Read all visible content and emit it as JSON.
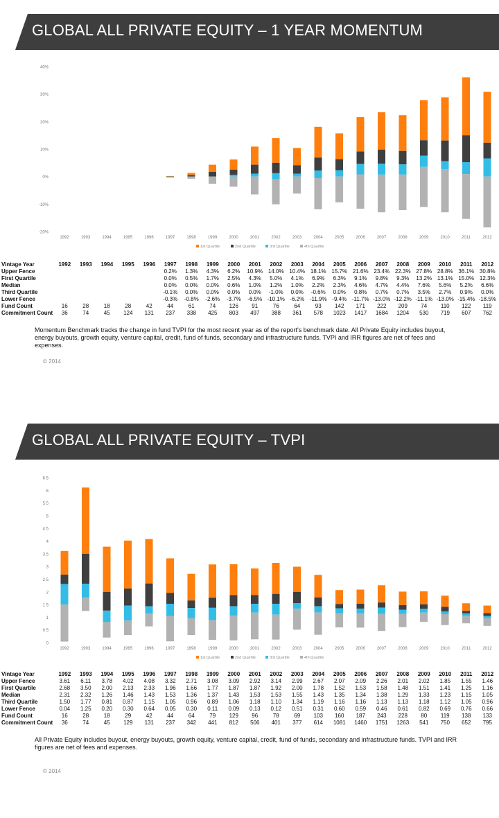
{
  "sections": [
    {
      "title": "GLOBAL ALL PRIVATE EQUITY – 1 YEAR MOMENTUM",
      "note": "Momentum Benchmark tracks the change in fund TVPI for the most recent year as of the report's benchmark date. All Private Equity includes buyout, energy buyouts, growth equity, venture capital, credit, fund of funds, secondary and infrastructure funds. TVPI and IRR figures are net of fees and expenses.",
      "copyright": "© 2014",
      "table": {
        "header_label": "Vintage Year",
        "years": [
          "1992",
          "1993",
          "1994",
          "1995",
          "1996",
          "1997",
          "1998",
          "1999",
          "2000",
          "2001",
          "2002",
          "2003",
          "2004",
          "2005",
          "2006",
          "2007",
          "2008",
          "2009",
          "2010",
          "2011",
          "2012"
        ],
        "rows": [
          {
            "label": "Upper Fence",
            "values": [
              "",
              "",
              "",
              "",
              "",
              "0.2%",
              "1.3%",
              "4.3%",
              "6.2%",
              "10.9%",
              "14.0%",
              "10.4%",
              "18.1%",
              "15.7%",
              "21.6%",
              "23.4%",
              "22.3%",
              "27.8%",
              "28.8%",
              "36.1%",
              "30.8%"
            ]
          },
          {
            "label": "First Quartile",
            "values": [
              "",
              "",
              "",
              "",
              "",
              "0.0%",
              "0.5%",
              "1.7%",
              "2.5%",
              "4.3%",
              "5.0%",
              "4.1%",
              "6.9%",
              "6.3%",
              "9.1%",
              "9.8%",
              "9.3%",
              "13.2%",
              "13.1%",
              "15.0%",
              "12.3%"
            ]
          },
          {
            "label": "Median",
            "values": [
              "",
              "",
              "",
              "",
              "",
              "0.0%",
              "0.0%",
              "0.0%",
              "0.6%",
              "1.0%",
              "1.2%",
              "1.0%",
              "2.2%",
              "2.3%",
              "4.6%",
              "4.7%",
              "4.4%",
              "7.6%",
              "5.6%",
              "5.2%",
              "6.6%"
            ]
          },
          {
            "label": "Third Quartile",
            "values": [
              "",
              "",
              "",
              "",
              "",
              "-0.1%",
              "0.0%",
              "0.0%",
              "0.0%",
              "0.0%",
              "-1.0%",
              "0.0%",
              "-0.6%",
              "0.0%",
              "0.8%",
              "0.7%",
              "0.7%",
              "3.5%",
              "2.7%",
              "0.9%",
              "0.0%"
            ]
          },
          {
            "label": "Lower Fence",
            "values": [
              "",
              "",
              "",
              "",
              "",
              "-0.3%",
              "-0.8%",
              "-2.6%",
              "-3.7%",
              "-6.5%",
              "-10.1%",
              "-6.2%",
              "-11.9%",
              "-9.4%",
              "-11.7%",
              "-13.0%",
              "-12.2%",
              "-11.1%",
              "-13.0%",
              "-15.4%",
              "-18.5%"
            ]
          },
          {
            "label": "Fund Count",
            "values": [
              "16",
              "28",
              "18",
              "28",
              "42",
              "44",
              "61",
              "74",
              "126",
              "91",
              "76",
              "64",
              "93",
              "142",
              "171",
              "222",
              "209",
              "74",
              "110",
              "122",
              "119"
            ]
          },
          {
            "label": "Commitment Count",
            "values": [
              "36",
              "74",
              "45",
              "124",
              "131",
              "237",
              "338",
              "425",
              "803",
              "497",
              "388",
              "361",
              "578",
              "1023",
              "1417",
              "1684",
              "1204",
              "530",
              "719",
              "607",
              "762"
            ]
          }
        ]
      }
    },
    {
      "title": "GLOBAL ALL PRIVATE EQUITY – TVPI",
      "note": "All Private Equity includes buyout, energy buyouts, growth equity, venture capital, credit, fund of funds, secondary and infrastructure funds. TVPI and IRR figures are net of fees and expenses.",
      "copyright": "© 2014",
      "table": {
        "header_label": "Vintage Year",
        "years": [
          "1992",
          "1993",
          "1994",
          "1995",
          "1996",
          "1997",
          "1998",
          "1999",
          "2000",
          "2001",
          "2002",
          "2003",
          "2004",
          "2005",
          "2006",
          "2007",
          "2008",
          "2009",
          "2010",
          "2011",
          "2012"
        ],
        "rows": [
          {
            "label": "Upper Fence",
            "values": [
              "3.61",
              "6.11",
              "3.78",
              "4.02",
              "4.08",
              "3.32",
              "2.71",
              "3.08",
              "3.09",
              "2.92",
              "3.14",
              "2.99",
              "2.67",
              "2.07",
              "2.09",
              "2.26",
              "2.01",
              "2.02",
              "1.85",
              "1.55",
              "1.46"
            ]
          },
          {
            "label": "First Quartile",
            "values": [
              "2.68",
              "3.50",
              "2.00",
              "2.13",
              "2.33",
              "1.96",
              "1.66",
              "1.77",
              "1.87",
              "1.87",
              "1.92",
              "2.00",
              "1.78",
              "1.52",
              "1.53",
              "1.58",
              "1.48",
              "1.51",
              "1.41",
              "1.25",
              "1.16"
            ]
          },
          {
            "label": "Median",
            "values": [
              "2.31",
              "2.32",
              "1.26",
              "1.46",
              "1.43",
              "1.53",
              "1.36",
              "1.37",
              "1.43",
              "1.53",
              "1.53",
              "1.55",
              "1.43",
              "1.35",
              "1.34",
              "1.38",
              "1.29",
              "1.33",
              "1.23",
              "1.15",
              "1.05"
            ]
          },
          {
            "label": "Third Quartile",
            "values": [
              "1.50",
              "1.77",
              "0.81",
              "0.87",
              "1.15",
              "1.05",
              "0.96",
              "0.89",
              "1.06",
              "1.18",
              "1.10",
              "1.34",
              "1.19",
              "1.16",
              "1.16",
              "1.13",
              "1.13",
              "1.18",
              "1.12",
              "1.05",
              "0.96"
            ]
          },
          {
            "label": "Lower Fence",
            "values": [
              "0.04",
              "1.25",
              "0.20",
              "0.30",
              "0.64",
              "0.05",
              "0.30",
              "0.11",
              "0.09",
              "0.13",
              "0.12",
              "0.51",
              "0.31",
              "0.60",
              "0.59",
              "0.46",
              "0.61",
              "0.82",
              "0.69",
              "0.76",
              "0.66"
            ]
          },
          {
            "label": "Fund Count",
            "values": [
              "16",
              "28",
              "18",
              "29",
              "42",
              "44",
              "64",
              "79",
              "129",
              "96",
              "78",
              "69",
              "103",
              "160",
              "187",
              "243",
              "228",
              "80",
              "119",
              "138",
              "133"
            ]
          },
          {
            "label": "Commitment Count",
            "values": [
              "36",
              "74",
              "45",
              "129",
              "131",
              "237",
              "342",
              "441",
              "812",
              "506",
              "401",
              "377",
              "614",
              "1081",
              "1460",
              "1751",
              "1263",
              "541",
              "750",
              "652",
              "795"
            ]
          }
        ]
      }
    }
  ],
  "colors": {
    "q1": "#ff7f0e",
    "q2": "#3f3f3f",
    "q3": "#33bde6",
    "q4": "#b2b2b2",
    "banner": "#3e3e3e"
  },
  "chart_data": [
    {
      "type": "bar",
      "stacking": "floating-quartile",
      "categories": [
        "1992",
        "1993",
        "1994",
        "1995",
        "1996",
        "1997",
        "1998",
        "1999",
        "2000",
        "2001",
        "2002",
        "2003",
        "2004",
        "2005",
        "2006",
        "2007",
        "2008",
        "2009",
        "2010",
        "2011",
        "2012"
      ],
      "ylim": [
        -20,
        40
      ],
      "yticks": [
        -20,
        -10,
        0,
        10,
        20,
        30,
        40
      ],
      "ytick_labels": [
        "-20%",
        "-10%",
        "0%",
        "10%",
        "20%",
        "30%",
        "40%"
      ],
      "legend_position": "bottom",
      "series": [
        {
          "name": "1st Quartile",
          "color_key": "q1",
          "from": [
            null,
            null,
            null,
            null,
            null,
            0.0,
            0.5,
            1.7,
            2.5,
            4.3,
            5.0,
            4.1,
            6.9,
            6.3,
            9.1,
            9.8,
            9.3,
            13.2,
            13.1,
            15.0,
            12.3
          ],
          "to": [
            null,
            null,
            null,
            null,
            null,
            0.2,
            1.3,
            4.3,
            6.2,
            10.9,
            14.0,
            10.4,
            18.1,
            15.7,
            21.6,
            23.4,
            22.3,
            27.8,
            28.8,
            36.1,
            30.8
          ]
        },
        {
          "name": "2nd Quartile",
          "color_key": "q2",
          "from": [
            null,
            null,
            null,
            null,
            null,
            0.0,
            0.0,
            0.0,
            0.6,
            1.0,
            1.2,
            1.0,
            2.2,
            2.3,
            4.6,
            4.7,
            4.4,
            7.6,
            5.6,
            5.2,
            6.6
          ],
          "to": [
            null,
            null,
            null,
            null,
            null,
            0.0,
            0.5,
            1.7,
            2.5,
            4.3,
            5.0,
            4.1,
            6.9,
            6.3,
            9.1,
            9.8,
            9.3,
            13.2,
            13.1,
            15.0,
            12.3
          ]
        },
        {
          "name": "3rd Quartile",
          "color_key": "q3",
          "from": [
            null,
            null,
            null,
            null,
            null,
            -0.1,
            0.0,
            0.0,
            0.0,
            0.0,
            -1.0,
            0.0,
            -0.6,
            0.0,
            0.8,
            0.7,
            0.7,
            3.5,
            2.7,
            0.9,
            0.0
          ],
          "to": [
            null,
            null,
            null,
            null,
            null,
            0.0,
            0.0,
            0.0,
            0.6,
            1.0,
            1.2,
            1.0,
            2.2,
            2.3,
            4.6,
            4.7,
            4.4,
            7.6,
            5.6,
            5.2,
            6.6
          ]
        },
        {
          "name": "4th Quartile",
          "color_key": "q4",
          "from": [
            null,
            null,
            null,
            null,
            null,
            -0.3,
            -0.8,
            -2.6,
            -3.7,
            -6.5,
            -10.1,
            -6.2,
            -11.9,
            -9.4,
            -11.7,
            -13.0,
            -12.2,
            -11.1,
            -13.0,
            -15.4,
            -18.5
          ],
          "to": [
            null,
            null,
            null,
            null,
            null,
            -0.1,
            0.0,
            0.0,
            0.0,
            0.0,
            -1.0,
            0.0,
            -0.6,
            0.0,
            0.8,
            0.7,
            0.7,
            3.5,
            2.7,
            0.9,
            0.0
          ]
        }
      ]
    },
    {
      "type": "bar",
      "stacking": "floating-quartile",
      "categories": [
        "1992",
        "1993",
        "1994",
        "1995",
        "1996",
        "1997",
        "1998",
        "1999",
        "2000",
        "2001",
        "2002",
        "2003",
        "2004",
        "2005",
        "2006",
        "2007",
        "2008",
        "2009",
        "2010",
        "2011",
        "2012"
      ],
      "ylim": [
        0,
        6.5
      ],
      "yticks": [
        0,
        0.5,
        1,
        1.5,
        2,
        2.5,
        3,
        3.5,
        4,
        4.5,
        5,
        5.5,
        6,
        6.5
      ],
      "ytick_labels": [
        "0",
        "0 5",
        "1",
        "1 5",
        "2",
        "2 5",
        "3",
        "3 5",
        "4",
        "4 5",
        "5",
        "5 5",
        "6",
        "6 5"
      ],
      "legend_position": "bottom",
      "series": [
        {
          "name": "1st Quartile",
          "color_key": "q1",
          "from": [
            2.68,
            3.5,
            2.0,
            2.13,
            2.33,
            1.96,
            1.66,
            1.77,
            1.87,
            1.87,
            1.92,
            2.0,
            1.78,
            1.52,
            1.53,
            1.58,
            1.48,
            1.51,
            1.41,
            1.25,
            1.16
          ],
          "to": [
            3.61,
            6.11,
            3.78,
            4.02,
            4.08,
            3.32,
            2.71,
            3.08,
            3.09,
            2.92,
            3.14,
            2.99,
            2.67,
            2.07,
            2.09,
            2.26,
            2.01,
            2.02,
            1.85,
            1.55,
            1.46
          ]
        },
        {
          "name": "2nd Quartile",
          "color_key": "q2",
          "from": [
            2.31,
            2.32,
            1.26,
            1.46,
            1.43,
            1.53,
            1.36,
            1.37,
            1.43,
            1.53,
            1.53,
            1.55,
            1.43,
            1.35,
            1.34,
            1.38,
            1.29,
            1.33,
            1.23,
            1.15,
            1.05
          ],
          "to": [
            2.68,
            3.5,
            2.0,
            2.13,
            2.33,
            1.96,
            1.66,
            1.77,
            1.87,
            1.87,
            1.92,
            2.0,
            1.78,
            1.52,
            1.53,
            1.58,
            1.48,
            1.51,
            1.41,
            1.25,
            1.16
          ]
        },
        {
          "name": "3rd Quartile",
          "color_key": "q3",
          "from": [
            1.5,
            1.77,
            0.81,
            0.87,
            1.15,
            1.05,
            0.96,
            0.89,
            1.06,
            1.18,
            1.1,
            1.34,
            1.19,
            1.16,
            1.16,
            1.13,
            1.13,
            1.18,
            1.12,
            1.05,
            0.96
          ],
          "to": [
            2.31,
            2.32,
            1.26,
            1.46,
            1.43,
            1.53,
            1.36,
            1.37,
            1.43,
            1.53,
            1.53,
            1.55,
            1.43,
            1.35,
            1.34,
            1.38,
            1.29,
            1.33,
            1.23,
            1.15,
            1.05
          ]
        },
        {
          "name": "4th Quartile",
          "color_key": "q4",
          "from": [
            0.04,
            1.25,
            0.2,
            0.3,
            0.64,
            0.05,
            0.3,
            0.11,
            0.09,
            0.13,
            0.12,
            0.51,
            0.31,
            0.6,
            0.59,
            0.46,
            0.61,
            0.82,
            0.69,
            0.76,
            0.66
          ],
          "to": [
            1.5,
            1.77,
            0.81,
            0.87,
            1.15,
            1.05,
            0.96,
            0.89,
            1.06,
            1.18,
            1.1,
            1.34,
            1.19,
            1.16,
            1.16,
            1.13,
            1.13,
            1.18,
            1.12,
            1.05,
            0.96
          ]
        }
      ]
    }
  ]
}
